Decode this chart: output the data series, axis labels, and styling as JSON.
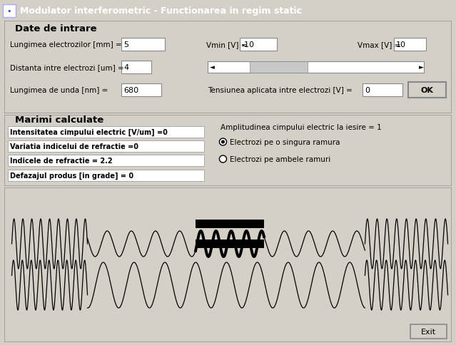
{
  "title": "Modulator interferometric - Functionarea in regim static",
  "title_bg": "#3080e0",
  "title_fg": "white",
  "window_bg": "#d4d0c8",
  "canvas_bg": "#f8f5d8",
  "section1_title": "Date de intrare",
  "section2_title": "Marimi calculate",
  "fields_left": [
    "Lungimea electrozilor [mm] =",
    "Distanta intre electrozi [um] =",
    "Lungimea de unda [nm] ="
  ],
  "values_left": [
    "5",
    "4",
    "680"
  ],
  "vmin_label": "Vmin [V] =",
  "vmin_val": "-10",
  "vmax_label": "Vmax [V] =",
  "vmax_val": "10",
  "field_voltage": "Tensiunea aplicata intre electrozi [V] =",
  "value_voltage": "0",
  "calc_fields": [
    "Intensitatea cimpului electric [V/um] =0",
    "Variatia indicelui de refractie =0",
    "Indicele de refractie = 2.2",
    "Defazajul produs [in grade] = 0"
  ],
  "right_text": "Amplitudinea cimpului electric la iesire = 1",
  "radio1": "Electrozi pe o singura ramura",
  "radio2": "Electrozi pe ambele ramuri",
  "exit_btn": "Exit",
  "ok_btn": "OK"
}
